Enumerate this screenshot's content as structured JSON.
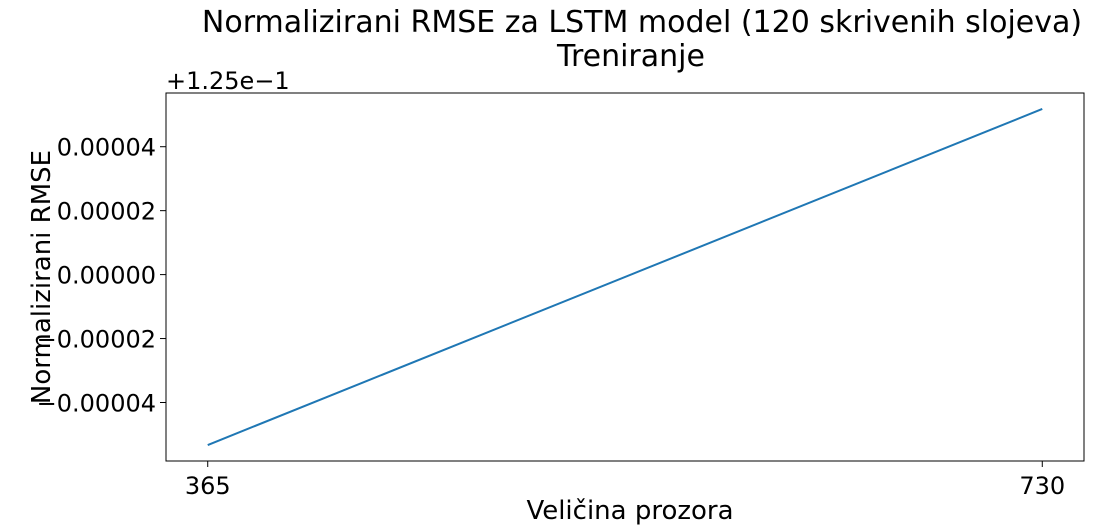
{
  "chart_data": {
    "type": "line",
    "title": "Normalizirani RMSE za LSTM model (120 skrivenih slojeva)",
    "subtitle": "Treniranje",
    "xlabel": "Veličina prozora",
    "ylabel": "Normalizirani RMSE",
    "offset_label": "+1.25e−1",
    "x_ticks": [
      365,
      730
    ],
    "y_ticks": [
      -4e-05,
      -2e-05,
      0.0,
      2e-05,
      4e-05
    ],
    "y_tick_labels": [
      "−0.00004",
      "−0.00002",
      "0.00000",
      "0.00002",
      "0.00004"
    ],
    "xlim": [
      346.75,
      748.25
    ],
    "ylim": [
      -5.83e-05,
      5.68e-05
    ],
    "grid": false,
    "series": [
      {
        "x": [
          365,
          730
        ],
        "y": [
          -5.33e-05,
          5.18e-05
        ],
        "color": "#1f77b4"
      }
    ]
  }
}
